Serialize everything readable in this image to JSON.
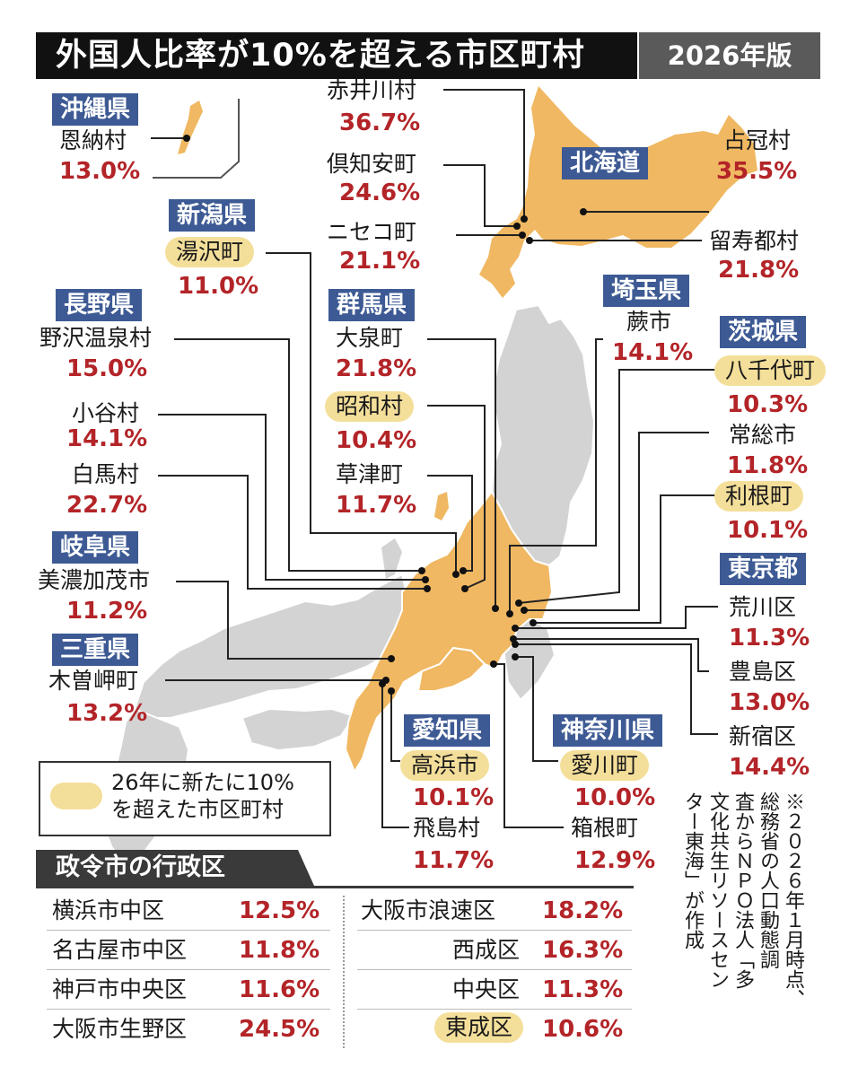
{
  "title": "外国人比率が10%を超える市区町村",
  "edition": "2026年版",
  "colors": {
    "highlight_area": "#f0b862",
    "new_badge": "#f4df9a",
    "pref_badge": "#3d5a94",
    "percent_text": "#b32428",
    "other_land": "#d3d3d3"
  },
  "prefectures": {
    "okinawa": "沖縄県",
    "niigata": "新潟県",
    "nagano": "長野県",
    "gifu": "岐阜県",
    "mie": "三重県",
    "hokkaido": "北海道",
    "gunma": "群馬県",
    "saitama": "埼玉県",
    "ibaraki": "茨城県",
    "tokyo": "東京都",
    "aichi": "愛知県",
    "kanagawa": "神奈川県"
  },
  "municipalities": {
    "onna": {
      "name": "恩納村",
      "pct": "13.0%",
      "new": false
    },
    "yuzawa": {
      "name": "湯沢町",
      "pct": "11.0%",
      "new": true
    },
    "nozawa": {
      "name": "野沢温泉村",
      "pct": "15.0%",
      "new": false
    },
    "otari": {
      "name": "小谷村",
      "pct": "14.1%",
      "new": false
    },
    "hakuba": {
      "name": "白馬村",
      "pct": "22.7%",
      "new": false
    },
    "minokamo": {
      "name": "美濃加茂市",
      "pct": "11.2%",
      "new": false
    },
    "kisosaki": {
      "name": "木曽岬町",
      "pct": "13.2%",
      "new": false
    },
    "akaigawa": {
      "name": "赤井川村",
      "pct": "36.7%",
      "new": false
    },
    "kutchan": {
      "name": "倶知安町",
      "pct": "24.6%",
      "new": false
    },
    "niseko": {
      "name": "ニセコ町",
      "pct": "21.1%",
      "new": false
    },
    "shimukappu": {
      "name": "占冠村",
      "pct": "35.5%",
      "new": false
    },
    "rusutsu": {
      "name": "留寿都村",
      "pct": "21.8%",
      "new": false
    },
    "oizumi": {
      "name": "大泉町",
      "pct": "21.8%",
      "new": false
    },
    "showa": {
      "name": "昭和村",
      "pct": "10.4%",
      "new": true
    },
    "kusatsu": {
      "name": "草津町",
      "pct": "11.7%",
      "new": false
    },
    "warabi": {
      "name": "蕨市",
      "pct": "14.1%",
      "new": false
    },
    "yachiyo": {
      "name": "八千代町",
      "pct": "10.3%",
      "new": true
    },
    "joso": {
      "name": "常総市",
      "pct": "11.8%",
      "new": false
    },
    "tone": {
      "name": "利根町",
      "pct": "10.1%",
      "new": true
    },
    "arakawa": {
      "name": "荒川区",
      "pct": "11.3%",
      "new": false
    },
    "toshima": {
      "name": "豊島区",
      "pct": "13.0%",
      "new": false
    },
    "shinjuku": {
      "name": "新宿区",
      "pct": "14.4%",
      "new": false
    },
    "takahama": {
      "name": "高浜市",
      "pct": "10.1%",
      "new": true
    },
    "tobishima": {
      "name": "飛島村",
      "pct": "11.7%",
      "new": false
    },
    "aikawa": {
      "name": "愛川町",
      "pct": "10.0%",
      "new": true
    },
    "hakone": {
      "name": "箱根町",
      "pct": "12.9%",
      "new": false
    }
  },
  "legend": {
    "line1": "26年に新たに10%",
    "line2": "を超えた市区町村"
  },
  "note": "※２０２６年１月時点、\n総務省の人口動態調\n査からＮＰＯ法人「多\n文化共生リソースセン\nター東海」が作成",
  "wards": {
    "title": "政令市の行政区",
    "rows": [
      {
        "name": "横浜市中区",
        "pct": "12.5%",
        "new": false
      },
      {
        "name": "名古屋市中区",
        "pct": "11.8%",
        "new": false
      },
      {
        "name": "神戸市中央区",
        "pct": "11.6%",
        "new": false
      },
      {
        "name": "大阪市生野区",
        "pct": "24.5%",
        "new": false
      },
      {
        "name": "大阪市浪速区",
        "pct": "18.2%",
        "new": false
      },
      {
        "name": "西成区",
        "pct": "16.3%",
        "new": false
      },
      {
        "name": "中央区",
        "pct": "11.3%",
        "new": false
      },
      {
        "name": "東成区",
        "pct": "10.6%",
        "new": true
      }
    ]
  }
}
